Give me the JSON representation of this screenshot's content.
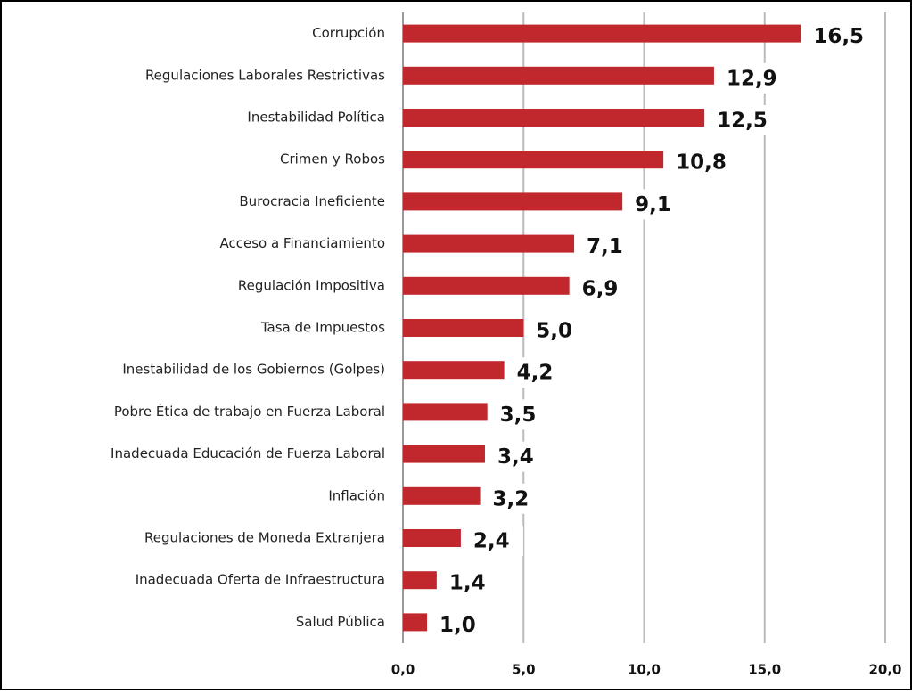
{
  "chart_data": {
    "type": "bar",
    "orientation": "horizontal",
    "categories": [
      "Corrupción",
      "Regulaciones Laborales Restrictivas",
      "Inestabilidad Política",
      "Crimen y Robos",
      "Burocracia Ineficiente",
      "Acceso a Financiamiento",
      "Regulación Impositiva",
      "Tasa de Impuestos",
      "Inestabilidad de los Gobiernos (Golpes)",
      "Pobre Ética de trabajo en Fuerza Laboral",
      "Inadecuada Educación de Fuerza Laboral",
      "Inflación",
      "Regulaciones de Moneda Extranjera",
      "Inadecuada Oferta de Infraestructura",
      "Salud Pública"
    ],
    "values": [
      16.5,
      12.9,
      12.5,
      10.8,
      9.1,
      7.1,
      6.9,
      5.0,
      4.2,
      3.5,
      3.4,
      3.2,
      2.4,
      1.4,
      1.0
    ],
    "value_labels": [
      "16,5",
      "12,9",
      "12,5",
      "10,8",
      "9,1",
      "7,1",
      "6,9",
      "5,0",
      "4,2",
      "3,5",
      "3,4",
      "3,2",
      "2,4",
      "1,4",
      "1,0"
    ],
    "color": "#c0282d",
    "xlim": [
      0,
      20
    ],
    "xticks": [
      {
        "value": 0,
        "label": "0,0"
      },
      {
        "value": 5,
        "label": "5,0"
      },
      {
        "value": 10,
        "label": "10,0"
      },
      {
        "value": 15,
        "label": "15,0"
      },
      {
        "value": 20,
        "label": "20,0"
      }
    ],
    "grid": true
  }
}
